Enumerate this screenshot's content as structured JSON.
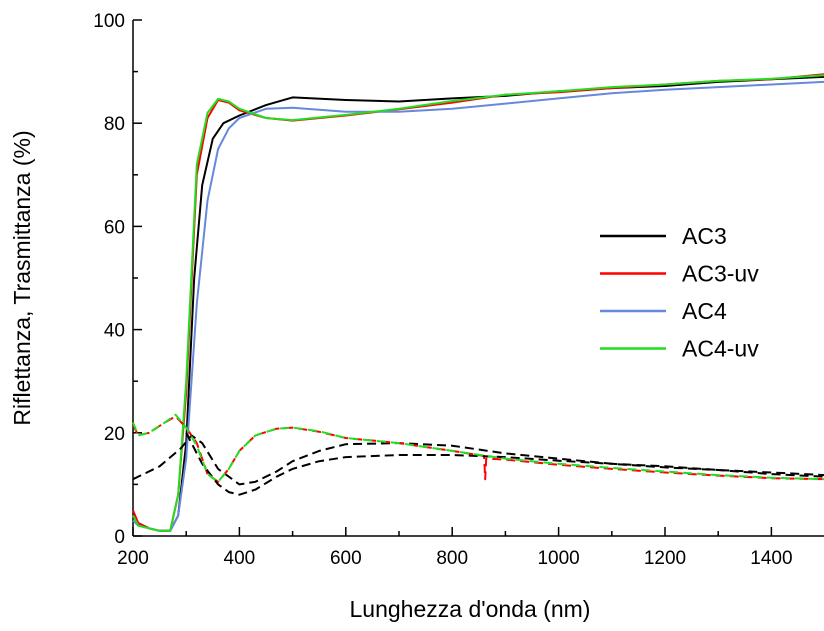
{
  "chart_data": {
    "type": "line",
    "title": "",
    "xlabel": "Lunghezza d'onda (nm)",
    "ylabel": "Riflettanza, Trasmittanza (%)",
    "xlim": [
      200,
      1500
    ],
    "ylim": [
      0,
      100
    ],
    "xticks": [
      200,
      400,
      600,
      800,
      1000,
      1200,
      1400
    ],
    "yticks": [
      0,
      20,
      40,
      60,
      80,
      100
    ],
    "grid": false,
    "legend_position": "right",
    "legend": [
      "AC3",
      "AC3-uv",
      "AC4",
      "AC4-uv"
    ],
    "series": [
      {
        "name": "AC3",
        "kind": "transmittance",
        "dashed": false,
        "color": "#000000",
        "points": [
          [
            200,
            4
          ],
          [
            210,
            2.5
          ],
          [
            230,
            1.5
          ],
          [
            250,
            1
          ],
          [
            270,
            1
          ],
          [
            285,
            4
          ],
          [
            300,
            18
          ],
          [
            315,
            50
          ],
          [
            330,
            68
          ],
          [
            350,
            77
          ],
          [
            370,
            80
          ],
          [
            400,
            81.5
          ],
          [
            450,
            83.5
          ],
          [
            500,
            85
          ],
          [
            600,
            84.5
          ],
          [
            700,
            84.2
          ],
          [
            800,
            84.8
          ],
          [
            900,
            85.3
          ],
          [
            1000,
            86.2
          ],
          [
            1100,
            86.8
          ],
          [
            1200,
            87.2
          ],
          [
            1300,
            88
          ],
          [
            1400,
            88.5
          ],
          [
            1500,
            89
          ]
        ]
      },
      {
        "name": "AC3-uv",
        "kind": "transmittance",
        "dashed": false,
        "color": "#ff0000",
        "points": [
          [
            200,
            5
          ],
          [
            210,
            2.5
          ],
          [
            230,
            1.5
          ],
          [
            250,
            1
          ],
          [
            270,
            1
          ],
          [
            285,
            8
          ],
          [
            300,
            28
          ],
          [
            320,
            70
          ],
          [
            340,
            81
          ],
          [
            360,
            84.5
          ],
          [
            380,
            84
          ],
          [
            400,
            82.5
          ],
          [
            450,
            81
          ],
          [
            500,
            80.5
          ],
          [
            600,
            81.5
          ],
          [
            700,
            82.7
          ],
          [
            800,
            84
          ],
          [
            900,
            85.5
          ],
          [
            1000,
            86
          ],
          [
            1100,
            86.8
          ],
          [
            1200,
            87.5
          ],
          [
            1300,
            88.2
          ],
          [
            1400,
            88.5
          ],
          [
            1500,
            89.5
          ]
        ]
      },
      {
        "name": "AC4",
        "kind": "transmittance",
        "dashed": false,
        "color": "#6688dd",
        "points": [
          [
            200,
            3
          ],
          [
            210,
            2
          ],
          [
            230,
            1.5
          ],
          [
            250,
            1
          ],
          [
            270,
            1
          ],
          [
            285,
            4
          ],
          [
            300,
            15
          ],
          [
            320,
            45
          ],
          [
            340,
            65
          ],
          [
            360,
            75
          ],
          [
            380,
            79
          ],
          [
            400,
            81
          ],
          [
            450,
            82.8
          ],
          [
            500,
            83
          ],
          [
            600,
            82.2
          ],
          [
            700,
            82.2
          ],
          [
            800,
            82.8
          ],
          [
            900,
            83.8
          ],
          [
            1000,
            84.8
          ],
          [
            1100,
            85.8
          ],
          [
            1200,
            86.5
          ],
          [
            1300,
            87
          ],
          [
            1400,
            87.5
          ],
          [
            1500,
            88
          ]
        ]
      },
      {
        "name": "AC4-uv",
        "kind": "transmittance",
        "dashed": false,
        "color": "#22dd22",
        "points": [
          [
            200,
            4
          ],
          [
            210,
            2
          ],
          [
            230,
            1.5
          ],
          [
            250,
            1
          ],
          [
            270,
            1
          ],
          [
            285,
            8
          ],
          [
            300,
            30
          ],
          [
            320,
            72
          ],
          [
            340,
            82
          ],
          [
            360,
            84.7
          ],
          [
            380,
            84.2
          ],
          [
            400,
            82.8
          ],
          [
            450,
            81
          ],
          [
            500,
            80.6
          ],
          [
            600,
            81.6
          ],
          [
            700,
            82.8
          ],
          [
            800,
            84.3
          ],
          [
            900,
            85.5
          ],
          [
            1000,
            86.2
          ],
          [
            1100,
            87
          ],
          [
            1200,
            87.5
          ],
          [
            1300,
            88.2
          ],
          [
            1400,
            88.6
          ],
          [
            1500,
            89.3
          ]
        ]
      },
      {
        "name": "AC3",
        "kind": "reflectance",
        "dashed": true,
        "color": "#000000",
        "points": [
          [
            200,
            11
          ],
          [
            250,
            13.5
          ],
          [
            290,
            17
          ],
          [
            310,
            19.5
          ],
          [
            330,
            18
          ],
          [
            360,
            13
          ],
          [
            400,
            10
          ],
          [
            430,
            10.5
          ],
          [
            470,
            12.5
          ],
          [
            500,
            14.5
          ],
          [
            550,
            16.5
          ],
          [
            600,
            17.8
          ],
          [
            700,
            18
          ],
          [
            800,
            17.5
          ],
          [
            900,
            16
          ],
          [
            1000,
            15
          ],
          [
            1100,
            14
          ],
          [
            1200,
            13.3
          ],
          [
            1300,
            12.8
          ],
          [
            1400,
            12
          ],
          [
            1500,
            11.5
          ]
        ]
      },
      {
        "name": "AC3-uv",
        "kind": "reflectance",
        "dashed": true,
        "color": "#ff0000",
        "points": [
          [
            200,
            21.5
          ],
          [
            210,
            19.5
          ],
          [
            230,
            20
          ],
          [
            260,
            22
          ],
          [
            280,
            23.2
          ],
          [
            300,
            21
          ],
          [
            320,
            18
          ],
          [
            340,
            12
          ],
          [
            360,
            10.5
          ],
          [
            380,
            13
          ],
          [
            400,
            16.5
          ],
          [
            430,
            19.5
          ],
          [
            470,
            20.8
          ],
          [
            500,
            21
          ],
          [
            550,
            20.2
          ],
          [
            600,
            19
          ],
          [
            700,
            18
          ],
          [
            800,
            16.5
          ],
          [
            860,
            15.5
          ],
          [
            862,
            11
          ],
          [
            864,
            15
          ],
          [
            900,
            14.8
          ],
          [
            1000,
            13.8
          ],
          [
            1100,
            13
          ],
          [
            1200,
            12.3
          ],
          [
            1300,
            11.7
          ],
          [
            1400,
            11.2
          ],
          [
            1500,
            11
          ]
        ]
      },
      {
        "name": "AC4",
        "kind": "reflectance",
        "dashed": true,
        "color": "#000000",
        "points": [
          [
            300,
            20
          ],
          [
            330,
            14
          ],
          [
            360,
            10
          ],
          [
            380,
            8.5
          ],
          [
            400,
            8
          ],
          [
            430,
            9
          ],
          [
            470,
            11.5
          ],
          [
            500,
            13
          ],
          [
            550,
            14.5
          ],
          [
            600,
            15.3
          ],
          [
            700,
            15.7
          ],
          [
            800,
            15.7
          ],
          [
            900,
            15.3
          ],
          [
            1000,
            14.6
          ],
          [
            1100,
            14
          ],
          [
            1200,
            13.5
          ],
          [
            1300,
            12.8
          ],
          [
            1400,
            12.3
          ],
          [
            1500,
            11.8
          ]
        ]
      },
      {
        "name": "AC4-uv",
        "kind": "reflectance",
        "dashed": true,
        "color": "#22dd22",
        "points": [
          [
            200,
            22
          ],
          [
            210,
            19.5
          ],
          [
            230,
            20
          ],
          [
            260,
            22
          ],
          [
            280,
            23.5
          ],
          [
            300,
            21
          ],
          [
            320,
            17.5
          ],
          [
            340,
            12
          ],
          [
            360,
            10.5
          ],
          [
            380,
            13
          ],
          [
            400,
            16.5
          ],
          [
            430,
            19.5
          ],
          [
            470,
            20.8
          ],
          [
            500,
            21
          ],
          [
            550,
            20.3
          ],
          [
            600,
            19
          ],
          [
            700,
            18
          ],
          [
            800,
            16.5
          ],
          [
            900,
            15
          ],
          [
            1000,
            14
          ],
          [
            1100,
            13.2
          ],
          [
            1200,
            12.5
          ],
          [
            1300,
            11.8
          ],
          [
            1400,
            11.3
          ],
          [
            1500,
            11
          ]
        ]
      }
    ]
  }
}
